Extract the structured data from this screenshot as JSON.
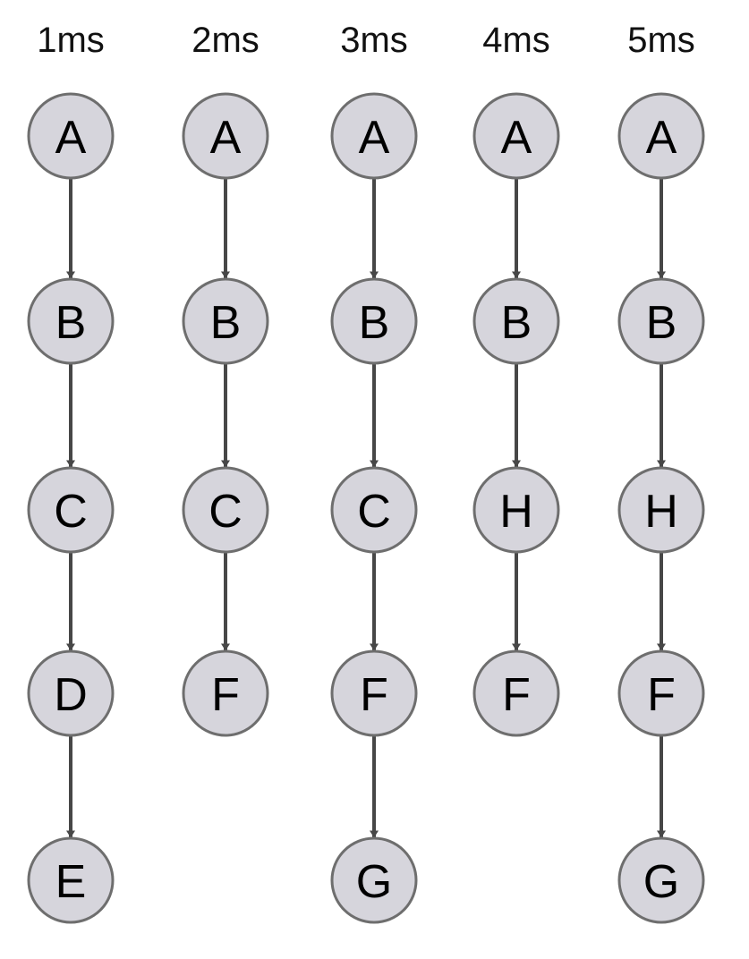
{
  "colors": {
    "node_fill": "#d6d5dc",
    "node_stroke": "#6e6e6e",
    "edge": "#474747",
    "text": "#000000"
  },
  "columns": [
    {
      "label": "1ms",
      "nodes": [
        "A",
        "B",
        "C",
        "D",
        "E"
      ]
    },
    {
      "label": "2ms",
      "nodes": [
        "A",
        "B",
        "C",
        "F"
      ]
    },
    {
      "label": "3ms",
      "nodes": [
        "A",
        "B",
        "C",
        "F",
        "G"
      ]
    },
    {
      "label": "4ms",
      "nodes": [
        "A",
        "B",
        "H",
        "F"
      ]
    },
    {
      "label": "5ms",
      "nodes": [
        "A",
        "B",
        "H",
        "F",
        "G"
      ]
    }
  ]
}
